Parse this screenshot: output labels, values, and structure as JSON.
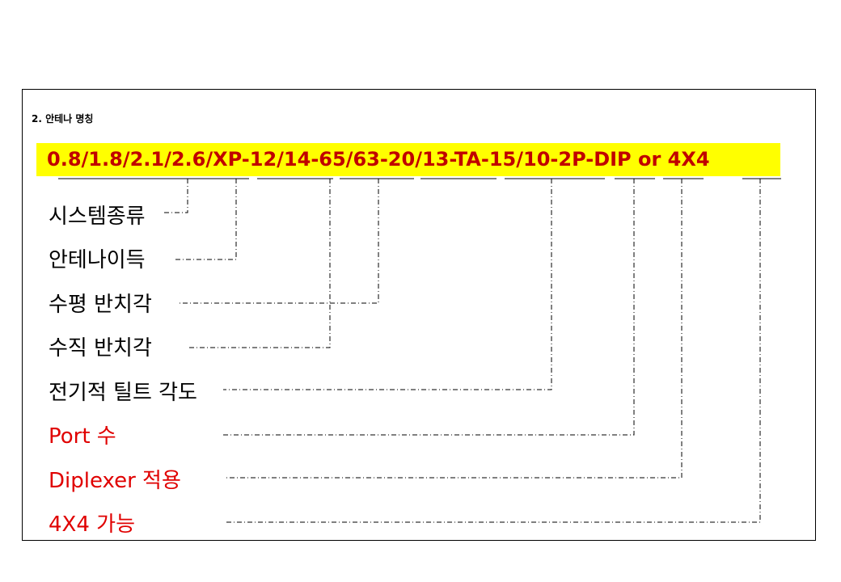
{
  "section_heading": "2.  안테나 명칭",
  "model_code": "0.8/1.8/2.1/2.6/XP-12/14-65/63-20/13-TA-15/10-2P-DIP or 4X4",
  "fields": [
    {
      "label": "시스템종류",
      "color": "#000000"
    },
    {
      "label": "안테나이득",
      "color": "#000000"
    },
    {
      "label": "수평 반치각",
      "color": "#000000"
    },
    {
      "label": "수직 반치각",
      "color": "#000000"
    },
    {
      "label": "전기적 틸트 각도",
      "color": "#000000"
    },
    {
      "label": "Port 수",
      "color": "#e00000"
    },
    {
      "label": "Diplexer 적용",
      "color": "#e00000"
    },
    {
      "label": "4X4 가능",
      "color": "#e00000"
    }
  ],
  "colors": {
    "highlight": "#ffff00",
    "code_text": "#c00000",
    "accent_label": "#e00000"
  }
}
